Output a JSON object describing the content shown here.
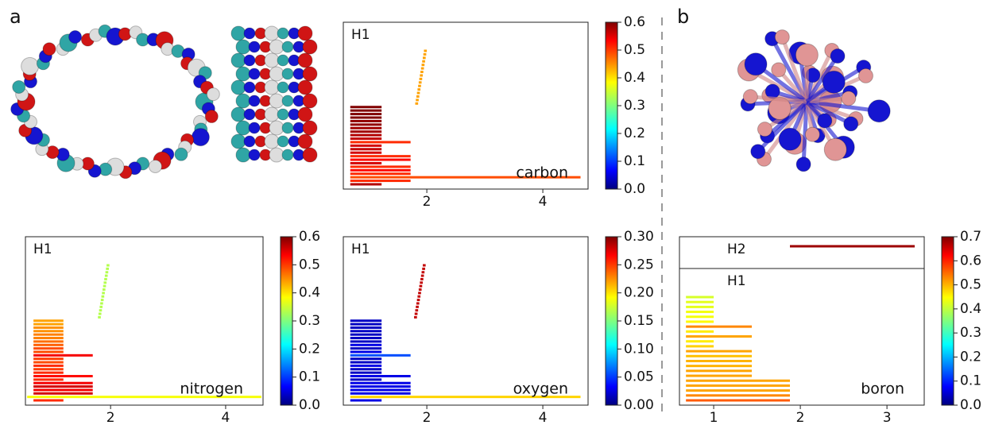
{
  "panels": [
    "a",
    "b"
  ],
  "chart_data": [
    {
      "type": "barcode",
      "label": "carbon",
      "label_color": "#1a7a80",
      "xlim": [
        0.56,
        4.78
      ],
      "xticks": [
        2,
        4
      ],
      "clim": [
        0,
        0.6
      ],
      "cticks": [
        {
          "value": 0,
          "label": "0.0"
        },
        0.1,
        0.2,
        0.3,
        0.4,
        0.5,
        0.6
      ],
      "groups": [
        {
          "label": "H1",
          "start": [
            0.68,
            0.68,
            0.68,
            0.68,
            0.68,
            0.68,
            0.68,
            0.68,
            0.68,
            0.68,
            0.68,
            0.68,
            0.68,
            0.68,
            0.68,
            0.68,
            0.68,
            0.68,
            0.68,
            0.68,
            0.68,
            0.68,
            0.68,
            1.8,
            1.81,
            1.82,
            1.83,
            1.84,
            1.85,
            1.86,
            1.87,
            1.88,
            1.89,
            1.9,
            1.91,
            1.92,
            1.93,
            1.94,
            1.95
          ],
          "end": [
            1.22,
            1.72,
            4.65,
            1.72,
            1.72,
            1.72,
            1.22,
            1.72,
            1.72,
            1.22,
            1.22,
            1.22,
            1.72,
            1.22,
            1.22,
            1.22,
            1.22,
            1.22,
            1.22,
            1.22,
            1.22,
            1.22,
            1.22,
            1.85,
            1.86,
            1.87,
            1.88,
            1.89,
            1.9,
            1.91,
            1.92,
            1.93,
            1.94,
            1.95,
            1.96,
            1.97,
            1.98,
            1.99,
            2.0
          ],
          "level": [
            0.57,
            0.5,
            0.48,
            0.5,
            0.52,
            0.5,
            0.55,
            0.52,
            0.5,
            0.55,
            0.56,
            0.55,
            0.5,
            0.56,
            0.57,
            0.58,
            0.58,
            0.59,
            0.59,
            0.6,
            0.6,
            0.6,
            0.6,
            0.43,
            0.43,
            0.43,
            0.43,
            0.43,
            0.43,
            0.43,
            0.43,
            0.43,
            0.43,
            0.43,
            0.43,
            0.43,
            0.43,
            0.43,
            0.43
          ]
        }
      ]
    },
    {
      "type": "barcode",
      "label": "nitrogen",
      "label_color": "#1010d0",
      "xlim": [
        0.52,
        4.65
      ],
      "xticks": [
        2,
        4
      ],
      "clim": [
        0,
        0.6
      ],
      "cticks": [
        {
          "value": 0,
          "label": "0.0"
        },
        0.1,
        0.2,
        0.3,
        0.4,
        0.5,
        0.6
      ],
      "groups": [
        {
          "label": "H1",
          "start": [
            0.66,
            0.55,
            0.66,
            0.66,
            0.66,
            0.66,
            0.66,
            0.66,
            0.66,
            0.66,
            0.66,
            0.66,
            0.66,
            0.66,
            0.66,
            0.66,
            0.66,
            0.66,
            0.66,
            0.66,
            0.66,
            0.66,
            0.66,
            0.66,
            1.78,
            1.79,
            1.8,
            1.81,
            1.82,
            1.83,
            1.84,
            1.85,
            1.86,
            1.87,
            1.88,
            1.89,
            1.9,
            1.91,
            1.92,
            1.93
          ],
          "end": [
            1.18,
            4.62,
            1.69,
            1.69,
            1.69,
            1.69,
            1.18,
            1.69,
            1.18,
            1.18,
            1.18,
            1.18,
            1.18,
            1.69,
            1.18,
            1.18,
            1.18,
            1.18,
            1.18,
            1.18,
            1.18,
            1.18,
            1.18,
            1.18,
            1.83,
            1.84,
            1.85,
            1.86,
            1.87,
            1.88,
            1.89,
            1.9,
            1.91,
            1.92,
            1.93,
            1.94,
            1.95,
            1.96,
            1.97,
            1.98
          ],
          "level": [
            0.5,
            0.37,
            0.55,
            0.53,
            0.55,
            0.53,
            0.5,
            0.52,
            0.5,
            0.49,
            0.5,
            0.48,
            0.49,
            0.53,
            0.48,
            0.48,
            0.47,
            0.46,
            0.45,
            0.45,
            0.44,
            0.44,
            0.43,
            0.43,
            0.33,
            0.33,
            0.33,
            0.33,
            0.33,
            0.33,
            0.33,
            0.33,
            0.33,
            0.33,
            0.33,
            0.33,
            0.33,
            0.33,
            0.33,
            0.33
          ]
        }
      ]
    },
    {
      "type": "barcode",
      "label": "oxygen",
      "label_color": "#dd1010",
      "xlim": [
        0.56,
        4.78
      ],
      "xticks": [
        2,
        4
      ],
      "clim": [
        0,
        0.3
      ],
      "cticks": [
        {
          "value": 0,
          "label": "0.00"
        },
        0.05,
        {
          "value": 0.1,
          "label": "0.10"
        },
        0.15,
        {
          "value": 0.2,
          "label": "0.20"
        },
        0.25,
        {
          "value": 0.3,
          "label": "0.30"
        }
      ],
      "groups": [
        {
          "label": "H1",
          "start": [
            0.68,
            0.68,
            0.68,
            0.68,
            0.68,
            0.68,
            0.68,
            0.68,
            0.68,
            0.68,
            0.68,
            0.68,
            0.68,
            0.68,
            0.68,
            0.68,
            0.68,
            0.68,
            0.68,
            0.68,
            0.68,
            0.68,
            0.68,
            0.68,
            1.78,
            1.79,
            1.8,
            1.81,
            1.82,
            1.83,
            1.84,
            1.85,
            1.86,
            1.87,
            1.88,
            1.89,
            1.9,
            1.91,
            1.92,
            1.93
          ],
          "end": [
            1.22,
            4.65,
            1.72,
            1.72,
            1.72,
            1.72,
            1.22,
            1.72,
            1.22,
            1.22,
            1.22,
            1.22,
            1.22,
            1.72,
            1.22,
            1.22,
            1.22,
            1.22,
            1.22,
            1.22,
            1.22,
            1.22,
            1.22,
            1.22,
            1.83,
            1.84,
            1.85,
            1.86,
            1.87,
            1.88,
            1.89,
            1.9,
            1.91,
            1.92,
            1.93,
            1.94,
            1.95,
            1.96,
            1.97,
            1.98
          ],
          "level": [
            0.03,
            0.2,
            0.03,
            0.03,
            0.03,
            0.03,
            0.02,
            0.03,
            0.02,
            0.02,
            0.03,
            0.02,
            0.02,
            0.06,
            0.03,
            0.02,
            0.03,
            0.02,
            0.02,
            0.02,
            0.02,
            0.02,
            0.02,
            0.02,
            0.28,
            0.28,
            0.28,
            0.28,
            0.28,
            0.28,
            0.28,
            0.28,
            0.28,
            0.28,
            0.28,
            0.28,
            0.28,
            0.28,
            0.28,
            0.28
          ]
        }
      ]
    },
    {
      "type": "barcode",
      "label": "boron",
      "label_color": "#c88080",
      "xlim": [
        0.605,
        3.43
      ],
      "xticks": [
        1,
        2,
        3
      ],
      "clim": [
        0,
        0.7
      ],
      "cticks": [
        {
          "value": 0,
          "label": "0.0"
        },
        0.1,
        0.2,
        0.3,
        0.4,
        0.5,
        0.6,
        0.7
      ],
      "groups": [
        {
          "label": "H2",
          "start": [
            1.88
          ],
          "end": [
            3.32
          ],
          "level": [
            0.68
          ]
        },
        {
          "label": "H1",
          "start": [
            0.68,
            0.68,
            0.68,
            0.68,
            0.68,
            0.68,
            0.68,
            0.68,
            0.68,
            0.68,
            0.68,
            0.68,
            0.68,
            0.68,
            0.68,
            0.68,
            0.68,
            0.68,
            0.68,
            0.68,
            0.68,
            0.68
          ],
          "end": [
            1.88,
            1.88,
            1.88,
            1.88,
            1.88,
            1.44,
            1.44,
            1.44,
            1.44,
            1.44,
            1.44,
            1.0,
            1.0,
            1.44,
            1.0,
            1.44,
            1.0,
            1.0,
            1.0,
            1.0,
            1.0,
            1.0
          ],
          "level": [
            0.55,
            0.52,
            0.5,
            0.5,
            0.5,
            0.5,
            0.5,
            0.49,
            0.49,
            0.48,
            0.5,
            0.47,
            0.45,
            0.5,
            0.45,
            0.52,
            0.44,
            0.43,
            0.43,
            0.42,
            0.42,
            0.41
          ]
        }
      ]
    }
  ]
}
